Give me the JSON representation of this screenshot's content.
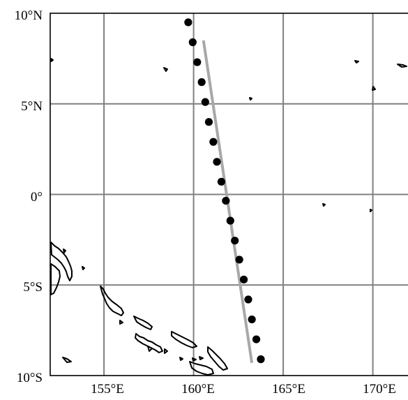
{
  "map": {
    "lat_labels": [
      "10°N",
      "5°N",
      "0°",
      "5°S",
      "10°S"
    ],
    "lon_labels": [
      "155°E",
      "160°E",
      "165°E",
      "170°E"
    ],
    "lat_range": [
      -10,
      10
    ],
    "lon_range": [
      152,
      172
    ],
    "grid": true,
    "colors": {
      "grid": "#808080",
      "frame": "#000000",
      "coastline": "#000000",
      "track_fit": "#a8a8a8",
      "points": "#000000"
    }
  },
  "chart_data": {
    "type": "scatter",
    "xlabel": "",
    "ylabel": "",
    "x_unit": "longitude (°E)",
    "y_unit": "latitude (°N)",
    "points": [
      {
        "lon": 159.7,
        "lat": 9.5
      },
      {
        "lon": 159.95,
        "lat": 8.4
      },
      {
        "lon": 160.2,
        "lat": 7.3
      },
      {
        "lon": 160.45,
        "lat": 6.2
      },
      {
        "lon": 160.65,
        "lat": 5.1
      },
      {
        "lon": 160.85,
        "lat": 4.0
      },
      {
        "lon": 161.1,
        "lat": 2.9
      },
      {
        "lon": 161.3,
        "lat": 1.8
      },
      {
        "lon": 161.55,
        "lat": 0.7
      },
      {
        "lon": 161.8,
        "lat": -0.35
      },
      {
        "lon": 162.05,
        "lat": -1.45
      },
      {
        "lon": 162.3,
        "lat": -2.55
      },
      {
        "lon": 162.55,
        "lat": -3.6
      },
      {
        "lon": 162.8,
        "lat": -4.7
      },
      {
        "lon": 163.05,
        "lat": -5.8
      },
      {
        "lon": 163.25,
        "lat": -6.9
      },
      {
        "lon": 163.5,
        "lat": -8.0
      },
      {
        "lon": 163.75,
        "lat": -9.1
      }
    ],
    "fit_line": [
      {
        "lon": 160.55,
        "lat": 8.5
      },
      {
        "lon": 163.25,
        "lat": -9.3
      }
    ]
  }
}
